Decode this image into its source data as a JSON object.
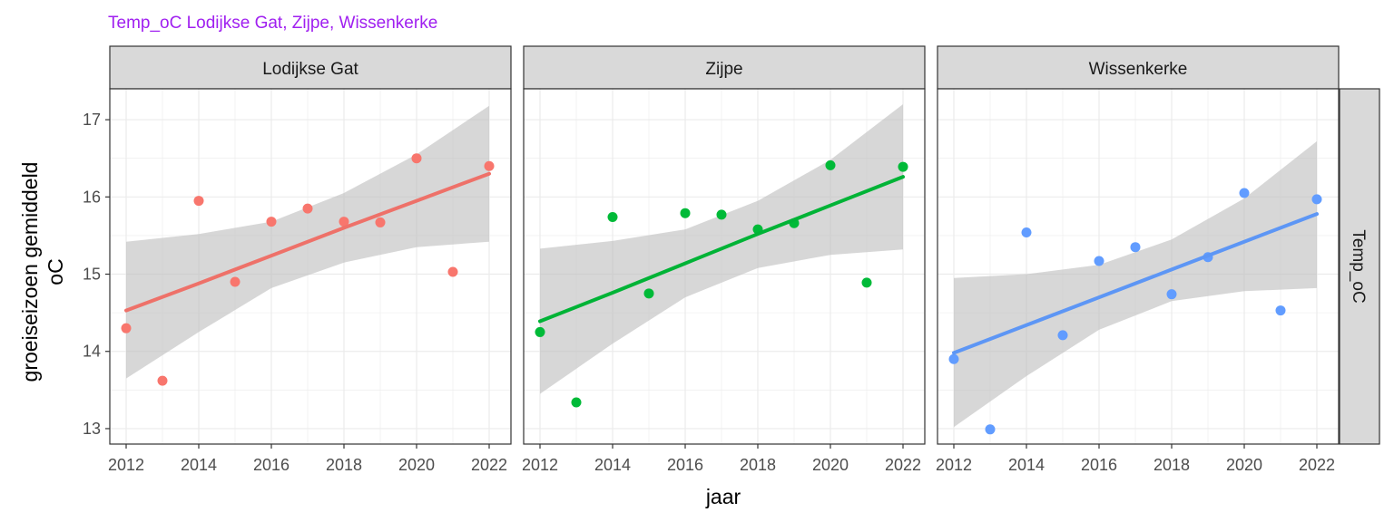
{
  "chart_data": {
    "type": "scatter",
    "title": "Temp_oC Lodijkse Gat, Zijpe, Wissenkerke",
    "xlabel": "jaar",
    "ylabel_line1": "groeiseizoen gemiddeld",
    "ylabel_line2": "oC",
    "row_strip": "Temp_oC",
    "xlim": [
      2011.55,
      2022.6
    ],
    "ylim": [
      12.8,
      17.4
    ],
    "x_ticks": [
      2012,
      2014,
      2016,
      2018,
      2020,
      2022
    ],
    "x_tick_labels": [
      "2012",
      "2014",
      "2016",
      "2018",
      "2020",
      "2022"
    ],
    "y_ticks": [
      13,
      14,
      15,
      16,
      17
    ],
    "y_tick_labels": [
      "13",
      "14",
      "15",
      "16",
      "17"
    ],
    "grid": true,
    "legend": "none",
    "title_color": "#a020f0",
    "band_color": "#bfbfbf",
    "panels": [
      {
        "name": "Lodijkse Gat",
        "color": "#f8766d",
        "x": [
          2012,
          2013,
          2014,
          2015,
          2016,
          2017,
          2018,
          2019,
          2020,
          2021,
          2022
        ],
        "y": [
          14.3,
          13.62,
          15.95,
          14.9,
          15.68,
          15.85,
          15.68,
          15.67,
          16.5,
          15.03,
          16.4
        ],
        "fit": {
          "x": [
            2012,
            2014,
            2016,
            2018,
            2020,
            2022
          ],
          "y": [
            14.53,
            14.88,
            15.24,
            15.6,
            15.95,
            16.3
          ]
        },
        "band_upper": {
          "x": [
            2012,
            2014,
            2016,
            2018,
            2020,
            2022
          ],
          "y": [
            15.42,
            15.52,
            15.68,
            16.05,
            16.55,
            17.18
          ]
        },
        "band_lower": {
          "x": [
            2012,
            2014,
            2016,
            2018,
            2020,
            2022
          ],
          "y": [
            13.65,
            14.25,
            14.82,
            15.15,
            15.35,
            15.42
          ]
        }
      },
      {
        "name": "Zijpe",
        "color": "#00ba38",
        "x": [
          2012,
          2013,
          2014,
          2015,
          2016,
          2017,
          2018,
          2019,
          2020,
          2021,
          2022
        ],
        "y": [
          14.25,
          13.34,
          15.74,
          14.75,
          15.79,
          15.77,
          15.58,
          15.66,
          16.41,
          14.89,
          16.39
        ],
        "fit": {
          "x": [
            2012,
            2014,
            2016,
            2018,
            2020,
            2022
          ],
          "y": [
            14.39,
            14.76,
            15.14,
            15.52,
            15.89,
            16.26
          ]
        },
        "band_upper": {
          "x": [
            2012,
            2014,
            2016,
            2018,
            2020,
            2022
          ],
          "y": [
            15.33,
            15.43,
            15.58,
            15.95,
            16.48,
            17.2
          ]
        },
        "band_lower": {
          "x": [
            2012,
            2014,
            2016,
            2018,
            2020,
            2022
          ],
          "y": [
            13.45,
            14.1,
            14.7,
            15.08,
            15.25,
            15.32
          ]
        }
      },
      {
        "name": "Wissenkerke",
        "color": "#619cff",
        "x": [
          2012,
          2013,
          2014,
          2015,
          2016,
          2017,
          2018,
          2019,
          2020,
          2021,
          2022
        ],
        "y": [
          13.9,
          12.99,
          15.54,
          14.21,
          15.17,
          15.35,
          14.74,
          15.22,
          16.05,
          14.53,
          15.97
        ],
        "fit": {
          "x": [
            2012,
            2014,
            2016,
            2018,
            2020,
            2022
          ],
          "y": [
            13.98,
            14.34,
            14.7,
            15.06,
            15.42,
            15.78
          ]
        },
        "band_upper": {
          "x": [
            2012,
            2014,
            2016,
            2018,
            2020,
            2022
          ],
          "y": [
            14.95,
            15.0,
            15.12,
            15.45,
            15.98,
            16.72
          ]
        },
        "band_lower": {
          "x": [
            2012,
            2014,
            2016,
            2018,
            2020,
            2022
          ],
          "y": [
            13.02,
            13.68,
            14.28,
            14.65,
            14.78,
            14.82
          ]
        }
      }
    ]
  }
}
